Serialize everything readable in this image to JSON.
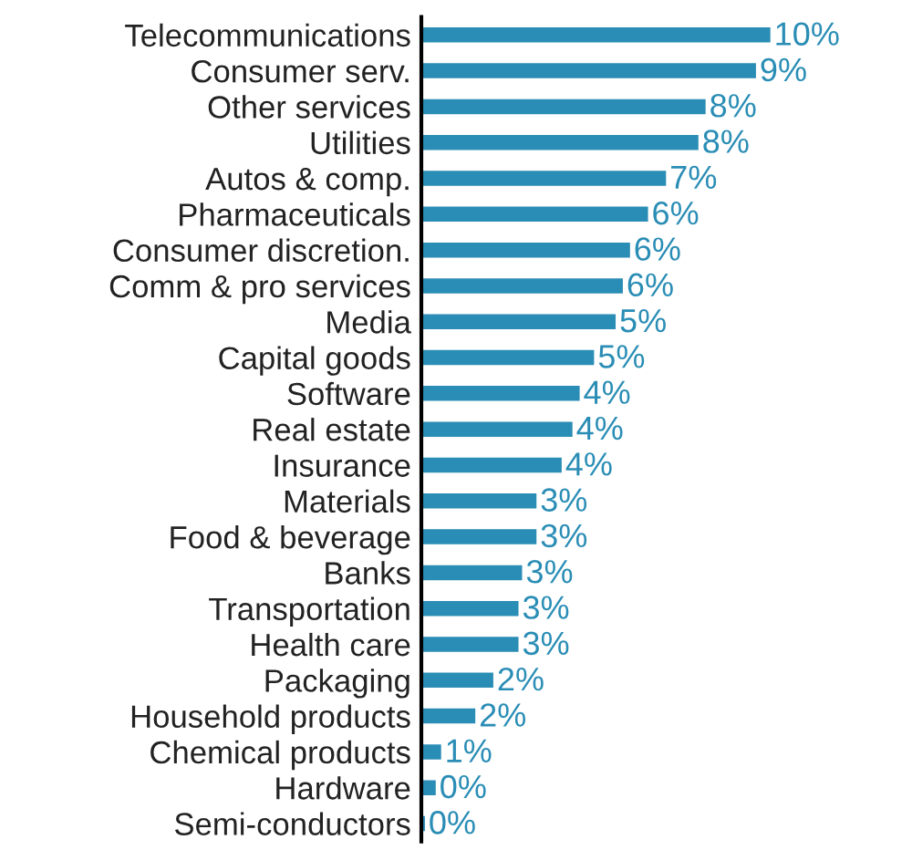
{
  "chart_data": {
    "type": "bar",
    "orientation": "horizontal",
    "categories": [
      "Telecommunications",
      "Consumer serv.",
      "Other services",
      "Utilities",
      "Autos & comp.",
      "Pharmaceuticals",
      "Consumer discretion.",
      "Comm & pro services",
      "Media",
      "Capital goods",
      "Software",
      "Real estate",
      "Insurance",
      "Materials",
      "Food & beverage",
      "Banks",
      "Transportation",
      "Health care",
      "Packaging",
      "Household products",
      "Chemical products",
      "Hardware",
      "Semi-conductors"
    ],
    "values": [
      9.7,
      9.3,
      7.9,
      7.7,
      6.8,
      6.3,
      5.8,
      5.6,
      5.4,
      4.8,
      4.4,
      4.2,
      3.9,
      3.2,
      3.2,
      2.8,
      2.7,
      2.7,
      2.0,
      1.5,
      0.55,
      0.4,
      0.1
    ],
    "value_labels": [
      "10%",
      "9%",
      "8%",
      "8%",
      "7%",
      "6%",
      "6%",
      "6%",
      "5%",
      "5%",
      "4%",
      "4%",
      "4%",
      "3%",
      "3%",
      "3%",
      "3%",
      "3%",
      "2%",
      "2%",
      "1%",
      "0%",
      "0%"
    ],
    "color": "#2a8db5"
  }
}
